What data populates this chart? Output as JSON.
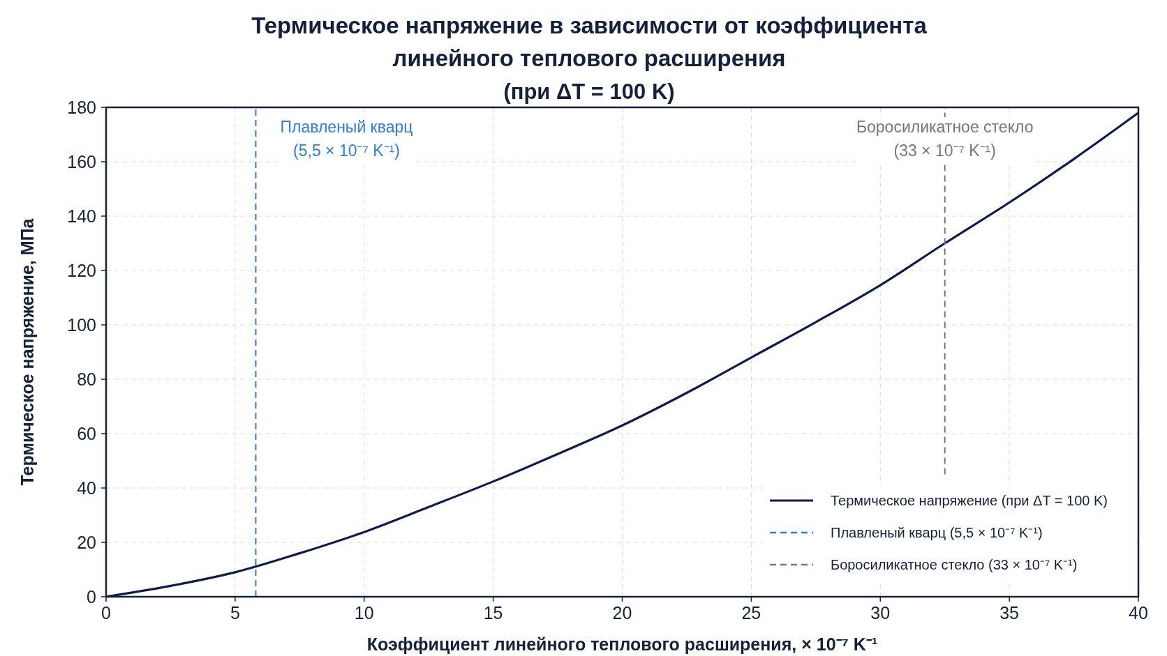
{
  "chart_data": {
    "type": "line",
    "title": "Термическое напряжение в зависимости от коэффициента\nлинейного теплового расширения",
    "subtitle": "(при ΔT = 100 K)",
    "xlabel": "Коэффициент линейного теплового расширения, × 10⁻⁷ K⁻¹",
    "ylabel": "Термическое напряжение, МПа",
    "xlim": [
      0,
      40
    ],
    "xticks": [
      0,
      5,
      10,
      15,
      20,
      25,
      30,
      35,
      40
    ],
    "ylim": [
      0,
      180
    ],
    "yticks": [
      0,
      20,
      40,
      60,
      80,
      100,
      120,
      140,
      160,
      180
    ],
    "grid": true,
    "legend": "bottom right",
    "series": [
      {
        "name": "Термическое напряжение (при ΔT = 100 K)",
        "color": "#0d1b4f",
        "x": [
          0,
          2.5,
          5,
          7.5,
          10,
          12.5,
          15,
          17.5,
          20,
          22.5,
          25,
          27.5,
          30,
          32.5,
          35,
          37.5,
          40
        ],
        "values": [
          0,
          4,
          9,
          16,
          23.8,
          33,
          42.4,
          52.5,
          63,
          75,
          88,
          101,
          114.6,
          130,
          145,
          161,
          178
        ],
        "line_style": "solid"
      },
      {
        "name": "Плавленый кварц (5,5 × 10⁻⁷ K⁻¹)",
        "color": "#2a7de1",
        "x": [
          5.8,
          5.8
        ],
        "values": [
          0,
          180
        ],
        "line_style": "dashed"
      },
      {
        "name": "Боросиликатное стекло (33 × 10⁻⁷ K⁻¹)",
        "color": "#707784",
        "x": [
          32.5,
          32.5
        ],
        "values": [
          45,
          180
        ],
        "line_style": "dashed"
      }
    ],
    "annotations": [
      "Плавленый кварц\n(5,5 × 10⁻⁷ K⁻¹)",
      "Боросиликатное стекло\n(33 × 10⁻⁷ K⁻¹)"
    ]
  }
}
